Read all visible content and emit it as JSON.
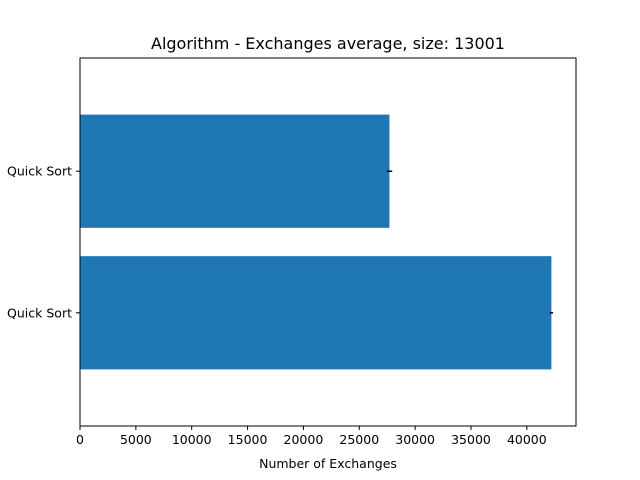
{
  "chart_data": {
    "type": "bar",
    "orientation": "horizontal",
    "title": "Algorithm - Exchanges average, size: 13001",
    "xlabel": "Number of Exchanges",
    "ylabel": "",
    "categories": [
      "Quick Sort",
      "Quick Sort"
    ],
    "values": [
      42200,
      27700
    ],
    "error": [
      150,
      250
    ],
    "xlim": [
      0,
      44400
    ],
    "xticks": [
      0,
      5000,
      10000,
      15000,
      20000,
      25000,
      30000,
      35000,
      40000
    ],
    "grid": false,
    "legend": "none",
    "bar_color": "#1f77b4",
    "error_color": "#000000"
  }
}
